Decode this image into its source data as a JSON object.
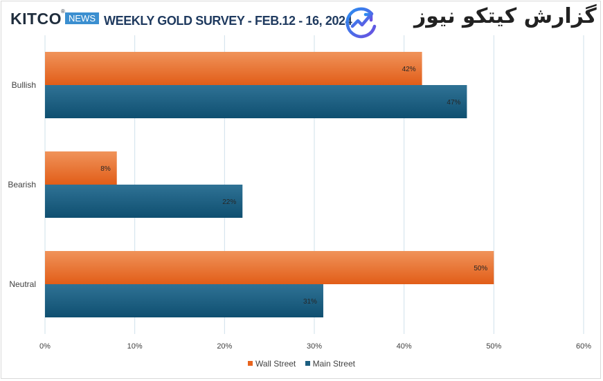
{
  "header": {
    "kitco_logo": "KITCO",
    "kitco_reg": "®",
    "news_badge": "NEWS",
    "title": "WEEKLY GOLD SURVEY - FEB.12 - 16, 2024",
    "brand_text": "گزارش کیتکو نیوز",
    "brand_icon": "trend-chart-icon"
  },
  "colors": {
    "wall_street": "#e8641e",
    "main_street": "#1b5e80",
    "gridline": "#cfe0ea",
    "label": "#404040"
  },
  "chart_data": {
    "type": "bar",
    "orientation": "horizontal",
    "categories": [
      "Bullish",
      "Bearish",
      "Neutral"
    ],
    "series": [
      {
        "name": "Wall Street",
        "values": [
          42,
          8,
          50
        ]
      },
      {
        "name": "Main Street",
        "values": [
          47,
          22,
          31
        ]
      }
    ],
    "value_suffix": "%",
    "xlim": [
      0,
      60
    ],
    "xticks": [
      "0%",
      "10%",
      "20%",
      "30%",
      "40%",
      "50%",
      "60%"
    ],
    "grid": true,
    "legend": "bottom",
    "data_labels": true
  }
}
